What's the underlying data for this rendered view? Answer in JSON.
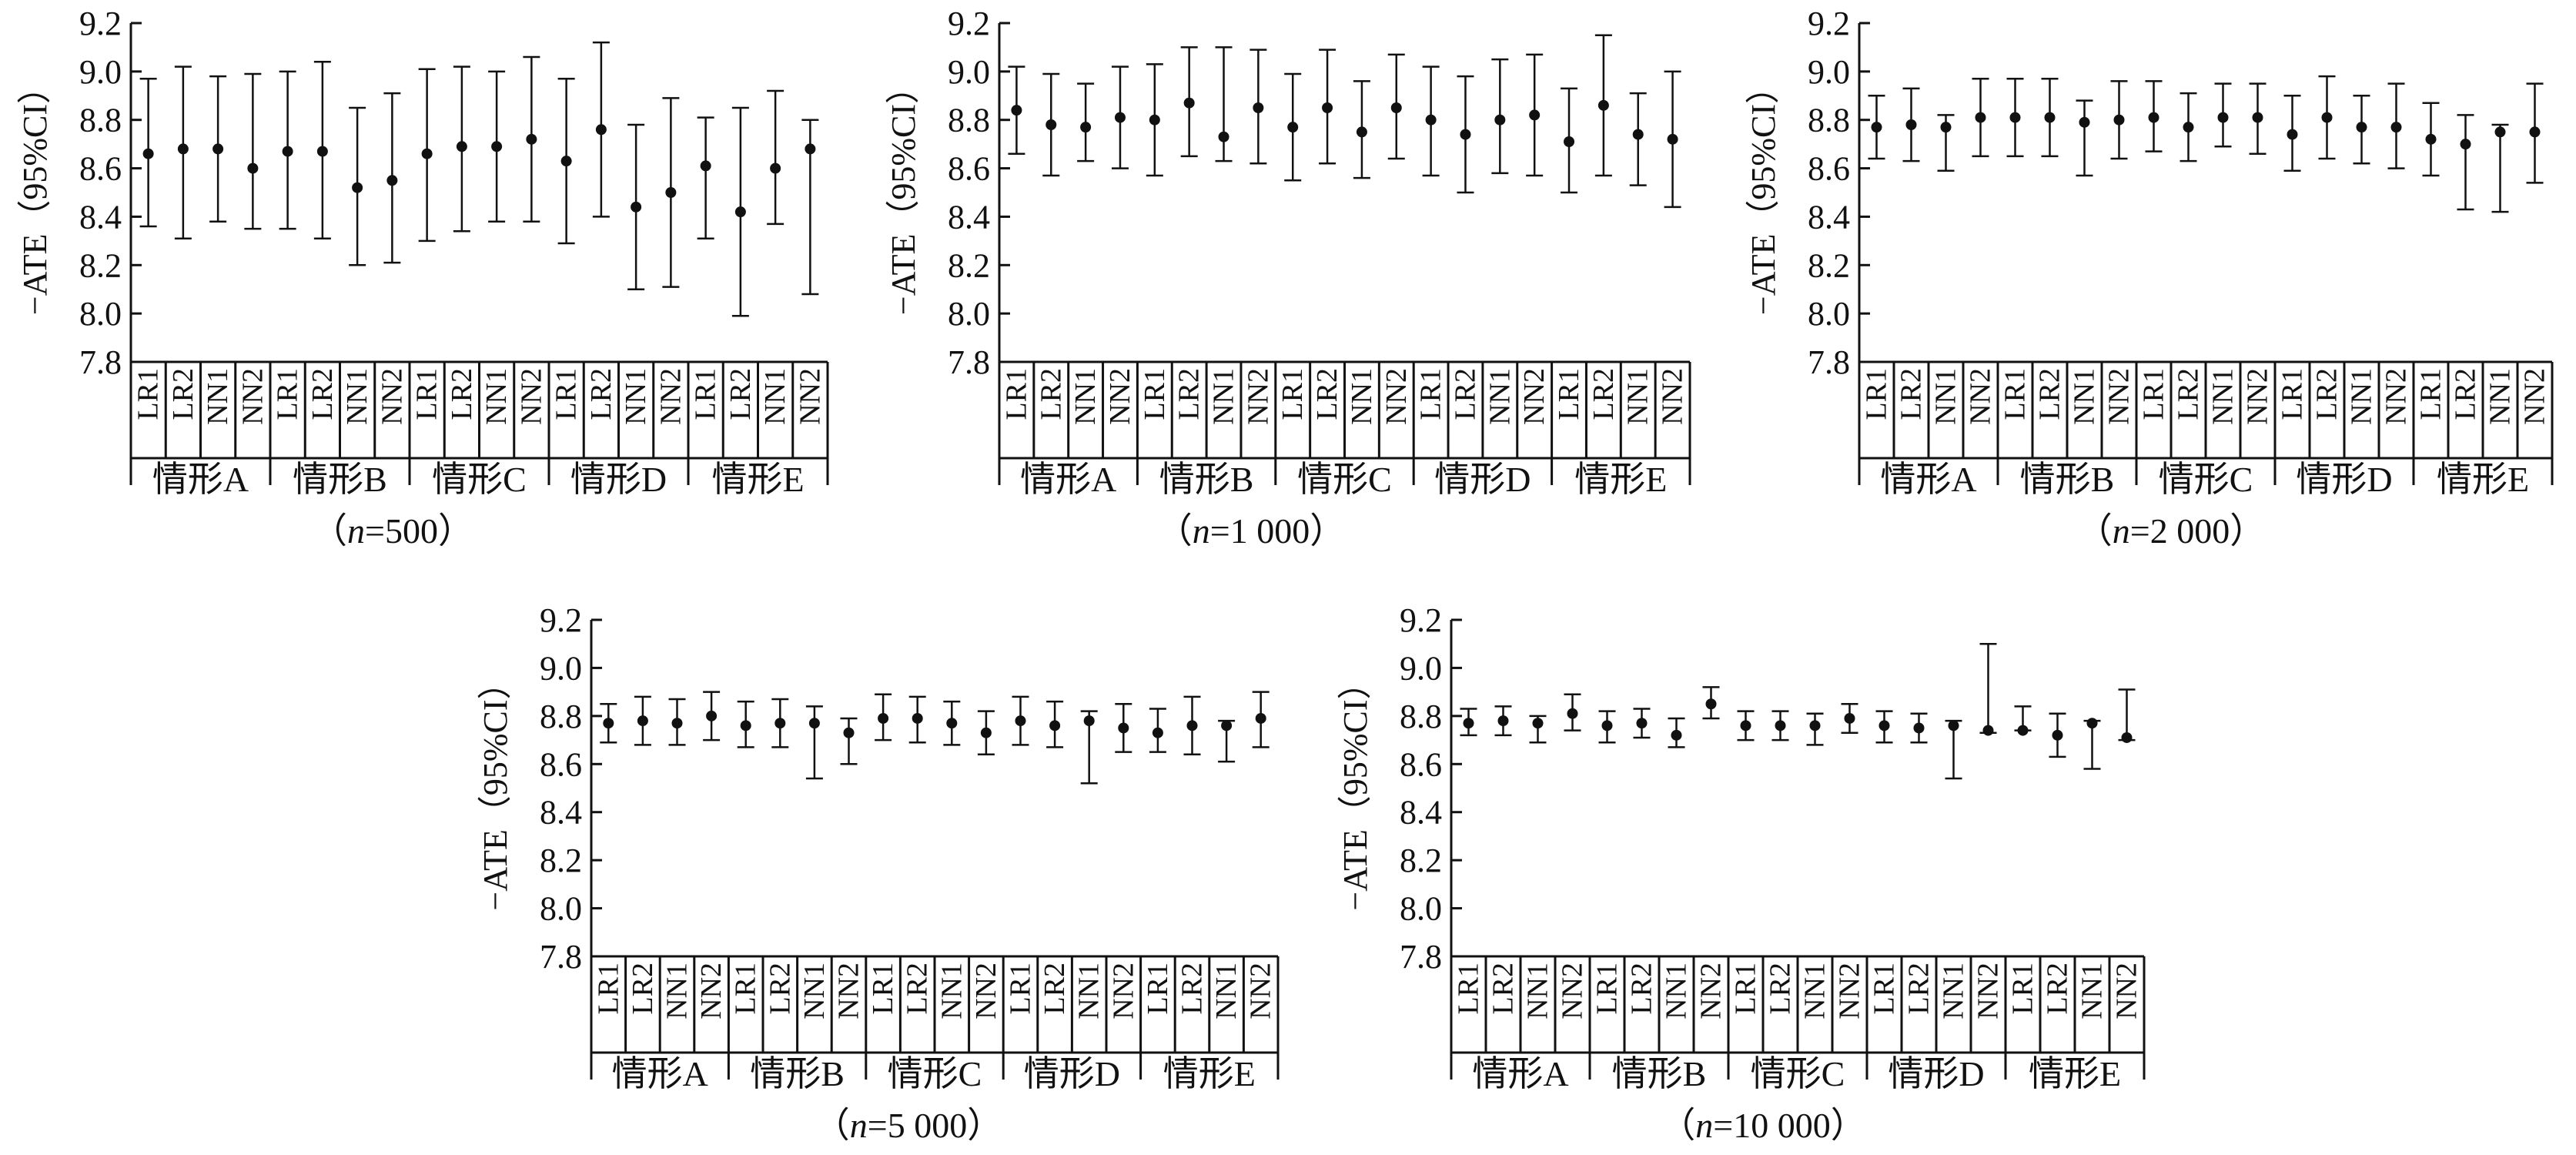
{
  "chart_data": [
    {
      "type": "errorbar",
      "caption": "（n=500）",
      "caption_pre": "（",
      "caption_n": "n",
      "caption_post": "=500）",
      "ylabel": "−ATE（95%CI）",
      "ylim": [
        7.8,
        9.2
      ],
      "yticks": [
        "7.8",
        "8.0",
        "8.2",
        "8.4",
        "8.6",
        "8.8",
        "9.0",
        "9.2"
      ],
      "groups": [
        "情形A",
        "情形B",
        "情形C",
        "情形D",
        "情形E"
      ],
      "methods": [
        "LR1",
        "LR2",
        "NN1",
        "NN2"
      ],
      "points": [
        {
          "mean": 8.66,
          "lo": 8.36,
          "hi": 8.97
        },
        {
          "mean": 8.68,
          "lo": 8.31,
          "hi": 9.02
        },
        {
          "mean": 8.68,
          "lo": 8.38,
          "hi": 8.98
        },
        {
          "mean": 8.6,
          "lo": 8.35,
          "hi": 8.99
        },
        {
          "mean": 8.67,
          "lo": 8.35,
          "hi": 9.0
        },
        {
          "mean": 8.67,
          "lo": 8.31,
          "hi": 9.04
        },
        {
          "mean": 8.52,
          "lo": 8.2,
          "hi": 8.85
        },
        {
          "mean": 8.55,
          "lo": 8.21,
          "hi": 8.91
        },
        {
          "mean": 8.66,
          "lo": 8.3,
          "hi": 9.01
        },
        {
          "mean": 8.69,
          "lo": 8.34,
          "hi": 9.02
        },
        {
          "mean": 8.69,
          "lo": 8.38,
          "hi": 9.0
        },
        {
          "mean": 8.72,
          "lo": 8.38,
          "hi": 9.06
        },
        {
          "mean": 8.63,
          "lo": 8.29,
          "hi": 8.97
        },
        {
          "mean": 8.76,
          "lo": 8.4,
          "hi": 9.12
        },
        {
          "mean": 8.44,
          "lo": 8.1,
          "hi": 8.78
        },
        {
          "mean": 8.5,
          "lo": 8.11,
          "hi": 8.89
        },
        {
          "mean": 8.61,
          "lo": 8.31,
          "hi": 8.81
        },
        {
          "mean": 8.42,
          "lo": 7.99,
          "hi": 8.85
        },
        {
          "mean": 8.6,
          "lo": 8.37,
          "hi": 8.92
        },
        {
          "mean": 8.68,
          "lo": 8.08,
          "hi": 8.8
        }
      ]
    },
    {
      "type": "errorbar",
      "caption": "（n=1 000）",
      "caption_pre": "（",
      "caption_n": "n",
      "caption_post": "=1 000）",
      "ylabel": "−ATE（95%CI）",
      "ylim": [
        7.8,
        9.2
      ],
      "yticks": [
        "7.8",
        "8.0",
        "8.2",
        "8.4",
        "8.6",
        "8.8",
        "9.0",
        "9.2"
      ],
      "groups": [
        "情形A",
        "情形B",
        "情形C",
        "情形D",
        "情形E"
      ],
      "methods": [
        "LR1",
        "LR2",
        "NN1",
        "NN2"
      ],
      "points": [
        {
          "mean": 8.84,
          "lo": 8.66,
          "hi": 9.02
        },
        {
          "mean": 8.78,
          "lo": 8.57,
          "hi": 8.99
        },
        {
          "mean": 8.77,
          "lo": 8.63,
          "hi": 8.95
        },
        {
          "mean": 8.81,
          "lo": 8.6,
          "hi": 9.02
        },
        {
          "mean": 8.8,
          "lo": 8.57,
          "hi": 9.03
        },
        {
          "mean": 8.87,
          "lo": 8.65,
          "hi": 9.1
        },
        {
          "mean": 8.73,
          "lo": 8.63,
          "hi": 9.1
        },
        {
          "mean": 8.85,
          "lo": 8.62,
          "hi": 9.09
        },
        {
          "mean": 8.77,
          "lo": 8.55,
          "hi": 8.99
        },
        {
          "mean": 8.85,
          "lo": 8.62,
          "hi": 9.09
        },
        {
          "mean": 8.75,
          "lo": 8.56,
          "hi": 8.96
        },
        {
          "mean": 8.85,
          "lo": 8.64,
          "hi": 9.07
        },
        {
          "mean": 8.8,
          "lo": 8.57,
          "hi": 9.02
        },
        {
          "mean": 8.74,
          "lo": 8.5,
          "hi": 8.98
        },
        {
          "mean": 8.8,
          "lo": 8.58,
          "hi": 9.05
        },
        {
          "mean": 8.82,
          "lo": 8.57,
          "hi": 9.07
        },
        {
          "mean": 8.71,
          "lo": 8.5,
          "hi": 8.93
        },
        {
          "mean": 8.86,
          "lo": 8.57,
          "hi": 9.15
        },
        {
          "mean": 8.74,
          "lo": 8.53,
          "hi": 8.91
        },
        {
          "mean": 8.72,
          "lo": 8.44,
          "hi": 9.0
        }
      ]
    },
    {
      "type": "errorbar",
      "caption": "（n=2 000）",
      "caption_pre": "（",
      "caption_n": "n",
      "caption_post": "=2 000）",
      "ylabel": "−ATE（95%CI）",
      "ylim": [
        7.8,
        9.2
      ],
      "yticks": [
        "7.8",
        "8.0",
        "8.2",
        "8.4",
        "8.6",
        "8.8",
        "9.0",
        "9.2"
      ],
      "groups": [
        "情形A",
        "情形B",
        "情形C",
        "情形D",
        "情形E"
      ],
      "methods": [
        "LR1",
        "LR2",
        "NN1",
        "NN2"
      ],
      "points": [
        {
          "mean": 8.77,
          "lo": 8.64,
          "hi": 8.9
        },
        {
          "mean": 8.78,
          "lo": 8.63,
          "hi": 8.93
        },
        {
          "mean": 8.77,
          "lo": 8.59,
          "hi": 8.82
        },
        {
          "mean": 8.81,
          "lo": 8.65,
          "hi": 8.97
        },
        {
          "mean": 8.81,
          "lo": 8.65,
          "hi": 8.97
        },
        {
          "mean": 8.81,
          "lo": 8.65,
          "hi": 8.97
        },
        {
          "mean": 8.79,
          "lo": 8.57,
          "hi": 8.88
        },
        {
          "mean": 8.8,
          "lo": 8.64,
          "hi": 8.96
        },
        {
          "mean": 8.81,
          "lo": 8.67,
          "hi": 8.96
        },
        {
          "mean": 8.77,
          "lo": 8.63,
          "hi": 8.91
        },
        {
          "mean": 8.81,
          "lo": 8.69,
          "hi": 8.95
        },
        {
          "mean": 8.81,
          "lo": 8.66,
          "hi": 8.95
        },
        {
          "mean": 8.74,
          "lo": 8.59,
          "hi": 8.9
        },
        {
          "mean": 8.81,
          "lo": 8.64,
          "hi": 8.98
        },
        {
          "mean": 8.77,
          "lo": 8.62,
          "hi": 8.9
        },
        {
          "mean": 8.77,
          "lo": 8.6,
          "hi": 8.95
        },
        {
          "mean": 8.72,
          "lo": 8.57,
          "hi": 8.87
        },
        {
          "mean": 8.7,
          "lo": 8.43,
          "hi": 8.82
        },
        {
          "mean": 8.75,
          "lo": 8.42,
          "hi": 8.78
        },
        {
          "mean": 8.75,
          "lo": 8.54,
          "hi": 8.95
        }
      ]
    },
    {
      "type": "errorbar",
      "caption": "（n=5 000）",
      "caption_pre": "（",
      "caption_n": "n",
      "caption_post": "=5 000）",
      "ylabel": "−ATE（95%CI）",
      "ylim": [
        7.8,
        9.2
      ],
      "yticks": [
        "7.8",
        "8.0",
        "8.2",
        "8.4",
        "8.6",
        "8.8",
        "9.0",
        "9.2"
      ],
      "groups": [
        "情形A",
        "情形B",
        "情形C",
        "情形D",
        "情形E"
      ],
      "methods": [
        "LR1",
        "LR2",
        "NN1",
        "NN2"
      ],
      "points": [
        {
          "mean": 8.77,
          "lo": 8.69,
          "hi": 8.85
        },
        {
          "mean": 8.78,
          "lo": 8.68,
          "hi": 8.88
        },
        {
          "mean": 8.77,
          "lo": 8.68,
          "hi": 8.87
        },
        {
          "mean": 8.8,
          "lo": 8.7,
          "hi": 8.9
        },
        {
          "mean": 8.76,
          "lo": 8.67,
          "hi": 8.86
        },
        {
          "mean": 8.77,
          "lo": 8.67,
          "hi": 8.87
        },
        {
          "mean": 8.77,
          "lo": 8.54,
          "hi": 8.84
        },
        {
          "mean": 8.73,
          "lo": 8.6,
          "hi": 8.79
        },
        {
          "mean": 8.79,
          "lo": 8.7,
          "hi": 8.89
        },
        {
          "mean": 8.79,
          "lo": 8.69,
          "hi": 8.88
        },
        {
          "mean": 8.77,
          "lo": 8.68,
          "hi": 8.86
        },
        {
          "mean": 8.73,
          "lo": 8.64,
          "hi": 8.82
        },
        {
          "mean": 8.78,
          "lo": 8.68,
          "hi": 8.88
        },
        {
          "mean": 8.76,
          "lo": 8.67,
          "hi": 8.86
        },
        {
          "mean": 8.78,
          "lo": 8.52,
          "hi": 8.82
        },
        {
          "mean": 8.75,
          "lo": 8.65,
          "hi": 8.85
        },
        {
          "mean": 8.73,
          "lo": 8.65,
          "hi": 8.83
        },
        {
          "mean": 8.76,
          "lo": 8.64,
          "hi": 8.88
        },
        {
          "mean": 8.76,
          "lo": 8.61,
          "hi": 8.78
        },
        {
          "mean": 8.79,
          "lo": 8.67,
          "hi": 8.9
        }
      ]
    },
    {
      "type": "errorbar",
      "caption": "（n=10 000）",
      "caption_pre": "（",
      "caption_n": "n",
      "caption_post": "=10 000）",
      "ylabel": "−ATE（95%CI）",
      "ylim": [
        7.8,
        9.2
      ],
      "yticks": [
        "7.8",
        "8.0",
        "8.2",
        "8.4",
        "8.6",
        "8.8",
        "9.0",
        "9.2"
      ],
      "groups": [
        "情形A",
        "情形B",
        "情形C",
        "情形D",
        "情形E"
      ],
      "methods": [
        "LR1",
        "LR2",
        "NN1",
        "NN2"
      ],
      "points": [
        {
          "mean": 8.77,
          "lo": 8.72,
          "hi": 8.83
        },
        {
          "mean": 8.78,
          "lo": 8.72,
          "hi": 8.84
        },
        {
          "mean": 8.77,
          "lo": 8.69,
          "hi": 8.8
        },
        {
          "mean": 8.81,
          "lo": 8.74,
          "hi": 8.89
        },
        {
          "mean": 8.76,
          "lo": 8.69,
          "hi": 8.82
        },
        {
          "mean": 8.77,
          "lo": 8.71,
          "hi": 8.83
        },
        {
          "mean": 8.72,
          "lo": 8.67,
          "hi": 8.79
        },
        {
          "mean": 8.85,
          "lo": 8.79,
          "hi": 8.92
        },
        {
          "mean": 8.76,
          "lo": 8.7,
          "hi": 8.82
        },
        {
          "mean": 8.76,
          "lo": 8.7,
          "hi": 8.82
        },
        {
          "mean": 8.76,
          "lo": 8.68,
          "hi": 8.81
        },
        {
          "mean": 8.79,
          "lo": 8.73,
          "hi": 8.85
        },
        {
          "mean": 8.76,
          "lo": 8.69,
          "hi": 8.82
        },
        {
          "mean": 8.75,
          "lo": 8.69,
          "hi": 8.81
        },
        {
          "mean": 8.76,
          "lo": 8.54,
          "hi": 8.78
        },
        {
          "mean": 8.74,
          "lo": 8.73,
          "hi": 9.1
        },
        {
          "mean": 8.74,
          "lo": 8.74,
          "hi": 8.84
        },
        {
          "mean": 8.72,
          "lo": 8.63,
          "hi": 8.81
        },
        {
          "mean": 8.77,
          "lo": 8.58,
          "hi": 8.78
        },
        {
          "mean": 8.71,
          "lo": 8.7,
          "hi": 8.91
        }
      ]
    }
  ]
}
